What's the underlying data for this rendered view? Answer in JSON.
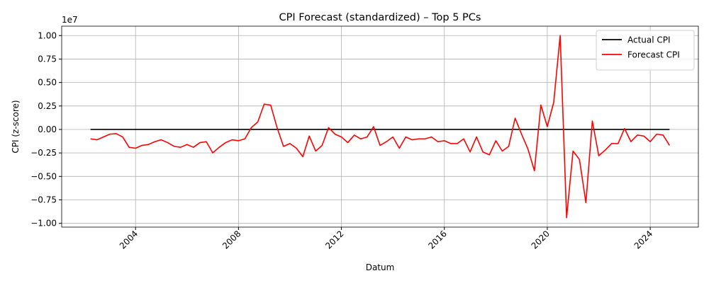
{
  "chart_data": {
    "type": "line",
    "title": "CPI Forecast (standardized) – Top 5 PCs",
    "x_label": "Datum",
    "y_label": "CPI (z-score)",
    "y_offset_label": "1e7",
    "x": [
      2002.25,
      2002.5,
      2002.75,
      2003,
      2003.25,
      2003.5,
      2003.75,
      2004,
      2004.25,
      2004.5,
      2004.75,
      2005,
      2005.25,
      2005.5,
      2005.75,
      2006,
      2006.25,
      2006.5,
      2006.75,
      2007,
      2007.25,
      2007.5,
      2007.75,
      2008,
      2008.25,
      2008.5,
      2008.75,
      2009,
      2009.25,
      2009.5,
      2009.75,
      2010,
      2010.25,
      2010.5,
      2010.75,
      2011,
      2011.25,
      2011.5,
      2011.75,
      2012,
      2012.25,
      2012.5,
      2012.75,
      2013,
      2013.25,
      2013.5,
      2013.75,
      2014,
      2014.25,
      2014.5,
      2014.75,
      2015,
      2015.25,
      2015.5,
      2015.75,
      2016,
      2016.25,
      2016.5,
      2016.75,
      2017,
      2017.25,
      2017.5,
      2017.75,
      2018,
      2018.25,
      2018.5,
      2018.75,
      2019,
      2019.25,
      2019.5,
      2019.75,
      2020,
      2020.25,
      2020.5,
      2020.75,
      2021,
      2021.25,
      2021.5,
      2021.75,
      2022,
      2022.25,
      2022.5,
      2022.75,
      2023,
      2023.25,
      2023.5,
      2023.75,
      2024,
      2024.25,
      2024.5,
      2024.75
    ],
    "series": [
      {
        "name": "Actual CPI",
        "color": "#000000",
        "values": [
          0,
          0,
          0,
          0,
          0,
          0,
          0,
          0,
          0,
          0,
          0,
          0,
          0,
          0,
          0,
          0,
          0,
          0,
          0,
          0,
          0,
          0,
          0,
          0,
          0,
          0,
          0,
          0,
          0,
          0,
          0,
          0,
          0,
          0,
          0,
          0,
          0,
          0,
          0,
          0,
          0,
          0,
          0,
          0,
          0,
          0,
          0,
          0,
          0,
          0,
          0,
          0,
          0,
          0,
          0,
          0,
          0,
          0,
          0,
          0,
          0,
          0,
          0,
          0,
          0,
          0,
          0,
          0,
          0,
          0,
          0,
          0,
          0,
          0,
          0,
          0,
          0,
          0,
          0,
          0,
          0,
          0,
          0,
          0,
          0,
          0,
          0,
          0,
          0,
          0,
          0
        ]
      },
      {
        "name": "Forecast CPI",
        "color": "#ff0000",
        "values": [
          -0.1,
          -0.11,
          -0.08,
          -0.05,
          -0.045,
          -0.08,
          -0.19,
          -0.2,
          -0.17,
          -0.16,
          -0.13,
          -0.11,
          -0.14,
          -0.18,
          -0.19,
          -0.16,
          -0.19,
          -0.14,
          -0.13,
          -0.25,
          -0.19,
          -0.14,
          -0.11,
          -0.12,
          -0.1,
          0.02,
          0.08,
          0.27,
          0.26,
          0.02,
          -0.18,
          -0.15,
          -0.2,
          -0.29,
          -0.07,
          -0.23,
          -0.17,
          0.02,
          -0.05,
          -0.08,
          -0.14,
          -0.06,
          -0.1,
          -0.08,
          0.03,
          -0.17,
          -0.13,
          -0.08,
          -0.2,
          -0.08,
          -0.11,
          -0.1,
          -0.1,
          -0.08,
          -0.13,
          -0.12,
          -0.15,
          -0.15,
          -0.1,
          -0.24,
          -0.08,
          -0.24,
          -0.27,
          -0.12,
          -0.23,
          -0.18,
          0.12,
          -0.05,
          -0.21,
          -0.44,
          0.26,
          0.03,
          0.29,
          1.0,
          -0.94,
          -0.23,
          -0.32,
          -0.78,
          0.09,
          -0.28,
          -0.22,
          -0.15,
          -0.15,
          0.01,
          -0.13,
          -0.06,
          -0.07,
          -0.13,
          -0.05,
          -0.06,
          -0.17
        ]
      }
    ],
    "xlim": [
      2001.13,
      2025.87
    ],
    "ylim": [
      -1.04,
      1.1
    ],
    "xticks": [
      2004,
      2008,
      2012,
      2016,
      2020,
      2024
    ],
    "yticks": [
      {
        "value": -1.0,
        "label": "−1.00"
      },
      {
        "value": -0.75,
        "label": "−0.75"
      },
      {
        "value": -0.5,
        "label": "−0.50"
      },
      {
        "value": -0.25,
        "label": "−0.25"
      },
      {
        "value": 0,
        "label": "0.00"
      },
      {
        "value": 0.25,
        "label": "0.25"
      },
      {
        "value": 0.5,
        "label": "0.50"
      },
      {
        "value": 0.75,
        "label": "0.75"
      },
      {
        "value": 1.0,
        "label": "1.00"
      }
    ],
    "grid": true,
    "legend": "upper-right"
  }
}
